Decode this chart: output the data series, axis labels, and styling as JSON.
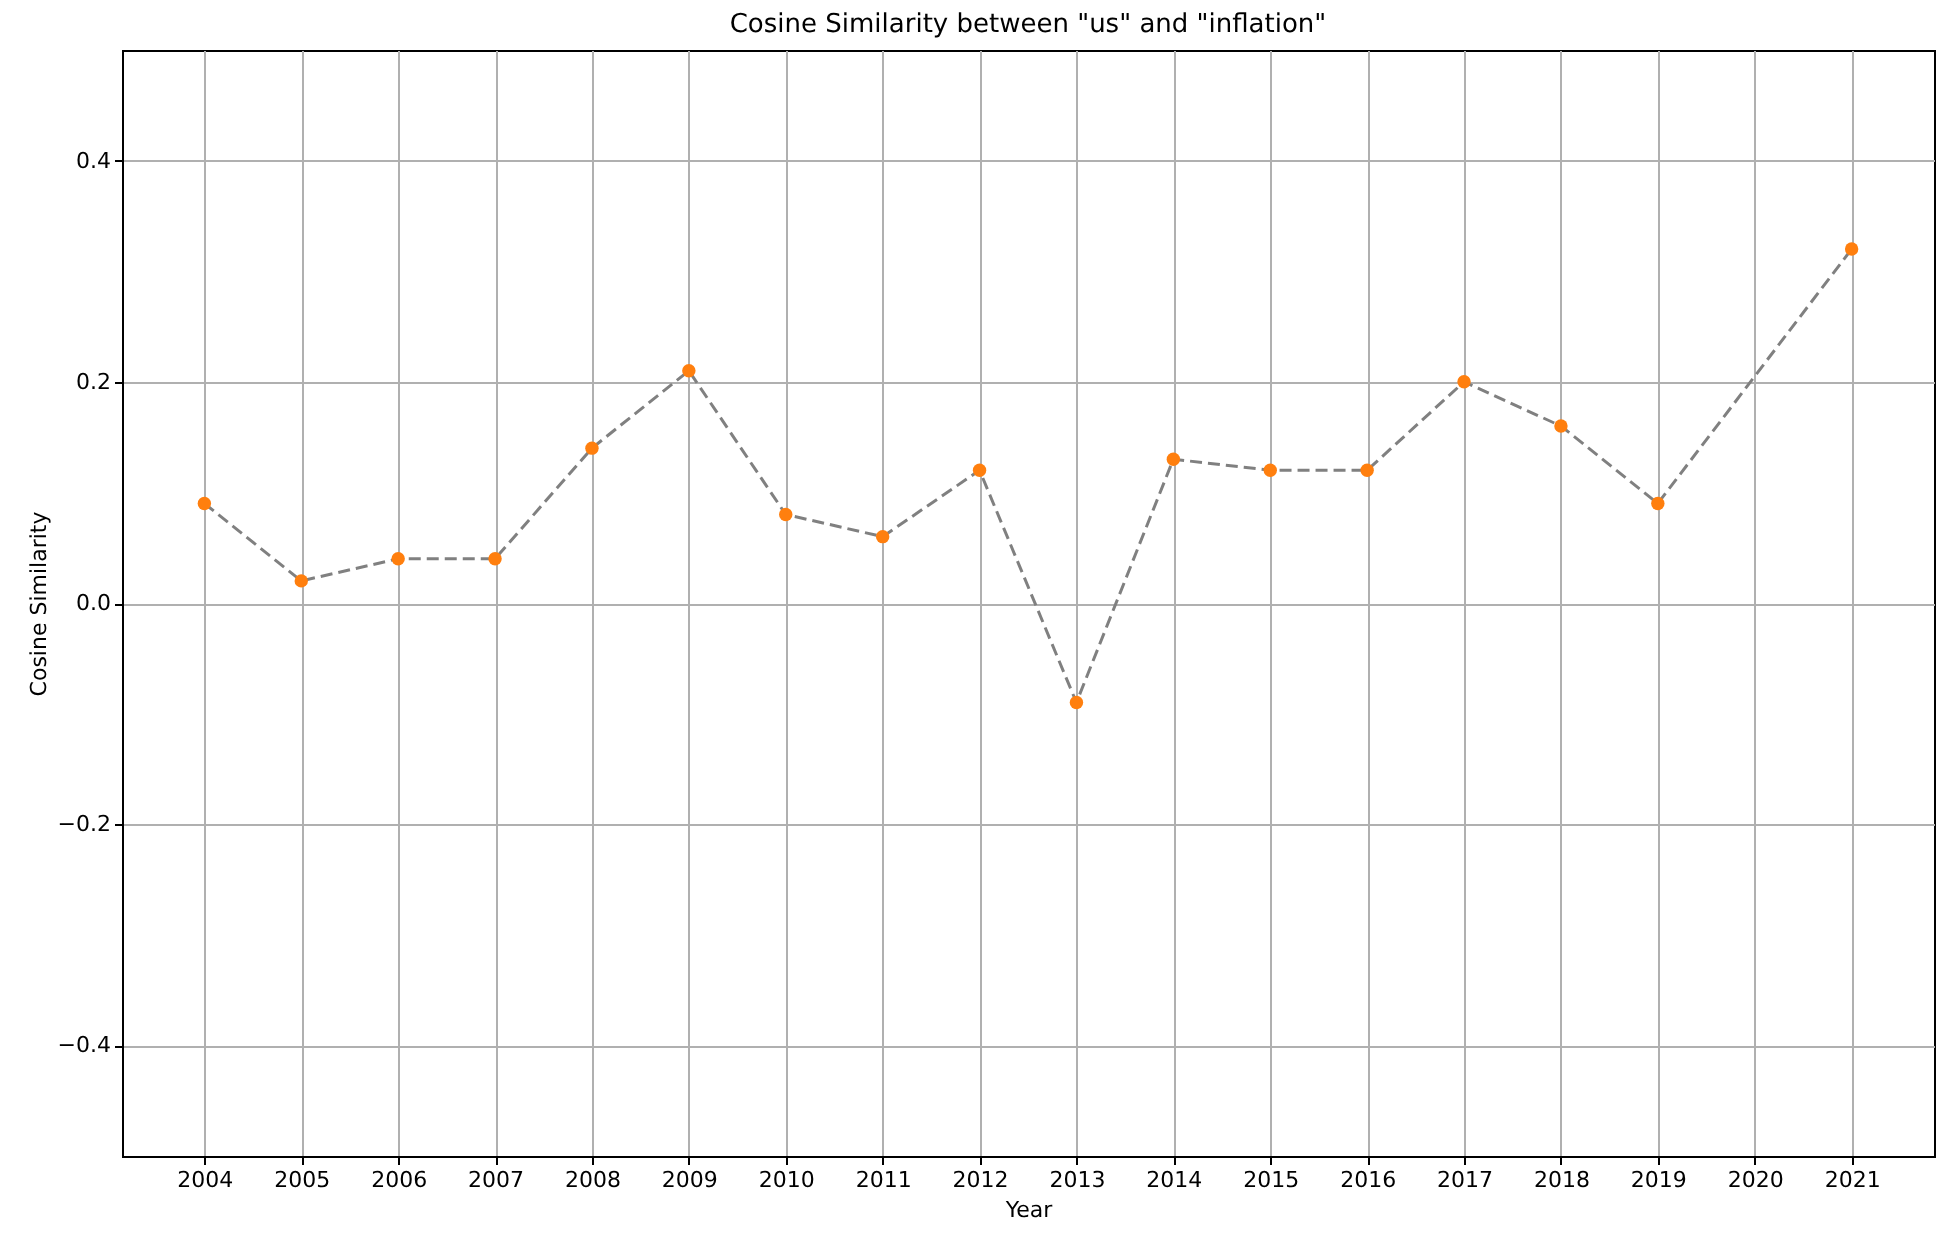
{
  "chart_data": {
    "type": "line",
    "title": "Cosine Similarity between \"us\" and \"inflation\"",
    "xlabel": "Year",
    "ylabel": "Cosine Similarity",
    "x": [
      2004,
      2005,
      2006,
      2007,
      2008,
      2009,
      2010,
      2011,
      2012,
      2013,
      2014,
      2015,
      2016,
      2017,
      2018,
      2019,
      2021
    ],
    "series": [
      {
        "color": "#808080",
        "line_style": "dashed",
        "marker": "none",
        "values": [
          0.09,
          0.02,
          0.04,
          0.04,
          0.14,
          0.21,
          0.08,
          0.06,
          0.12,
          -0.09,
          0.13,
          0.12,
          0.12,
          0.2,
          0.16,
          0.09,
          0.32
        ]
      },
      {
        "type": "scatter",
        "color": "#ff7f0e",
        "marker": "circle",
        "values": [
          0.09,
          0.02,
          0.04,
          0.04,
          0.14,
          0.21,
          0.08,
          0.06,
          0.12,
          -0.09,
          0.13,
          0.12,
          0.12,
          0.2,
          0.16,
          0.09,
          0.32
        ]
      }
    ],
    "xlim": [
      2003.15,
      2021.85
    ],
    "xticks": [
      2004,
      2005,
      2006,
      2007,
      2008,
      2009,
      2010,
      2011,
      2012,
      2013,
      2014,
      2015,
      2016,
      2017,
      2018,
      2019,
      2020,
      2021
    ],
    "ylim": [
      -0.5,
      0.5
    ],
    "yticks": [
      -0.4,
      -0.2,
      {
        "value": 0,
        "label": "0.0"
      },
      0.2,
      0.4
    ],
    "grid": true
  }
}
